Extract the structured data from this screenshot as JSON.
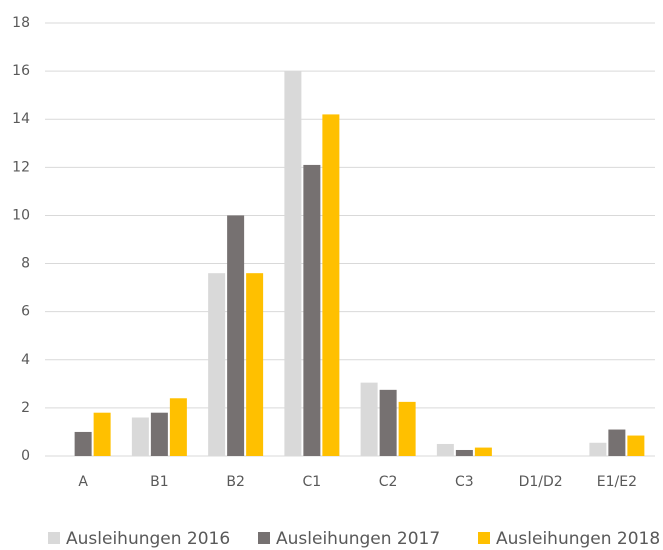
{
  "chart_data": {
    "type": "bar",
    "categories": [
      "A",
      "B1",
      "B2",
      "C1",
      "C2",
      "C3",
      "D1/D2",
      "E1/E2"
    ],
    "series": [
      {
        "name": "Ausleihungen 2016",
        "color": "#d9d9d9",
        "values": [
          0,
          1.6,
          7.6,
          16,
          3.05,
          0.5,
          0,
          0.55
        ]
      },
      {
        "name": "Ausleihungen 2017",
        "color": "#767171",
        "values": [
          1.0,
          1.8,
          10,
          12.1,
          2.75,
          0.25,
          0,
          1.1
        ]
      },
      {
        "name": "Ausleihungen 2018",
        "color": "#ffc000",
        "values": [
          1.8,
          2.4,
          7.6,
          14.2,
          2.25,
          0.35,
          0,
          0.85
        ]
      }
    ],
    "ylim": [
      0,
      18
    ],
    "yticks": [
      0,
      2,
      4,
      6,
      8,
      10,
      12,
      14,
      16,
      18
    ],
    "grid": true,
    "legend": "bottom"
  }
}
